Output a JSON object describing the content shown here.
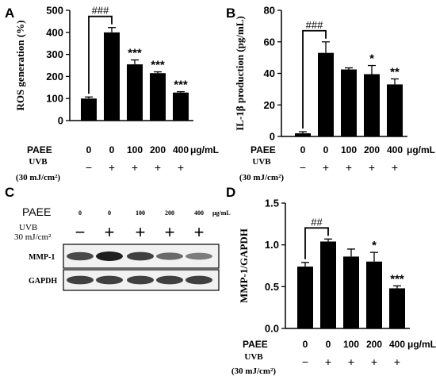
{
  "panels": {
    "A": "A",
    "B": "B",
    "C": "C",
    "D": "D"
  },
  "common": {
    "paee_label": "PAEE",
    "uvb_label": "UVB",
    "uvb_dose": "(30 mJ/cm²)",
    "unit": "μg/mL",
    "doses": [
      "0",
      "0",
      "100",
      "200",
      "400"
    ],
    "uvb_signs": [
      "−",
      "+",
      "+",
      "+",
      "+"
    ]
  },
  "western": {
    "paee_label": "PAEE",
    "uvb_label": "UVB",
    "uvb_dose": "30 mJ/cm²",
    "unit": "μg/mL",
    "doses": [
      "0",
      "0",
      "100",
      "200",
      "400"
    ],
    "uvb_signs": [
      "−",
      "+",
      "+",
      "+",
      "+"
    ],
    "rows": [
      {
        "label": "MMP-1",
        "intensity": [
          0.75,
          1.0,
          0.8,
          0.55,
          0.45
        ]
      },
      {
        "label": "GAPDH",
        "intensity": [
          0.8,
          0.8,
          0.8,
          0.8,
          0.8
        ]
      }
    ]
  },
  "chart_data": [
    {
      "panel": "A",
      "type": "bar",
      "categories": [
        "0",
        "0",
        "100",
        "200",
        "400"
      ],
      "values": [
        100,
        400,
        255,
        215,
        127
      ],
      "errors": [
        7,
        22,
        20,
        6,
        4
      ],
      "ylabel": "ROS generation (%)",
      "ylim": [
        0,
        500
      ],
      "yticks": [
        "0",
        "100",
        "200",
        "300",
        "400",
        "500"
      ],
      "sig_top": "###",
      "sig": [
        "",
        "",
        "***",
        "***",
        "***"
      ]
    },
    {
      "panel": "B",
      "type": "bar",
      "categories": [
        "0",
        "0",
        "100",
        "200",
        "400"
      ],
      "values": [
        2,
        53,
        42.5,
        39.5,
        33
      ],
      "errors": [
        1,
        7,
        1,
        5.5,
        3.5
      ],
      "ylabel": "IL-1β production (pg/mL)",
      "ylim": [
        0,
        80
      ],
      "yticks": [
        "0",
        "20",
        "40",
        "60",
        "80"
      ],
      "sig_top": "###",
      "sig": [
        "",
        "",
        "",
        "*",
        "**"
      ]
    },
    {
      "panel": "D",
      "type": "bar",
      "categories": [
        "0",
        "0",
        "100",
        "200",
        "400"
      ],
      "values": [
        0.74,
        1.04,
        0.86,
        0.8,
        0.48
      ],
      "errors": [
        0.05,
        0.03,
        0.09,
        0.11,
        0.03
      ],
      "ylabel": "MMP-1/GAPDH",
      "ylim": [
        0,
        1.5
      ],
      "yticks": [
        "0.0",
        "0.5",
        "1.0",
        "1.5"
      ],
      "sig_top": "##",
      "sig": [
        "",
        "",
        "",
        "*",
        "***"
      ]
    }
  ]
}
